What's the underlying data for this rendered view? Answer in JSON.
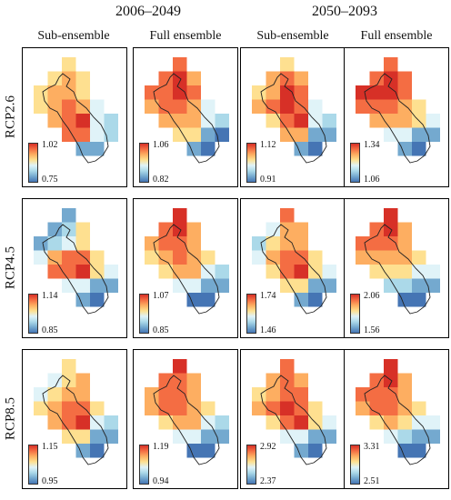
{
  "periods": [
    {
      "label": "2006–2049"
    },
    {
      "label": "2050–2093"
    }
  ],
  "columns": [
    {
      "label": "Sub-ensemble"
    },
    {
      "label": "Full ensemble"
    },
    {
      "label": "Sub-ensemble"
    },
    {
      "label": "Full ensemble"
    }
  ],
  "rows": [
    {
      "label": "RCP2.6"
    },
    {
      "label": "RCP4.5"
    },
    {
      "label": "RCP8.5"
    }
  ],
  "colorbar": {
    "colors": [
      "#4575b4",
      "#74a9cf",
      "#abd9e9",
      "#e0f3f8",
      "#fee090",
      "#fdae61",
      "#f46d43",
      "#d73027"
    ]
  },
  "panels": [
    {
      "max": "1.02",
      "min": "0.75"
    },
    {
      "max": "1.06",
      "min": "0.82"
    },
    {
      "max": "1.12",
      "min": "0.91"
    },
    {
      "max": "1.34",
      "min": "1.06"
    },
    {
      "max": "1.14",
      "min": "0.85"
    },
    {
      "max": "1.07",
      "min": "0.85"
    },
    {
      "max": "1.74",
      "min": "1.46"
    },
    {
      "max": "2.06",
      "min": "1.56"
    },
    {
      "max": "1.15",
      "min": "0.95"
    },
    {
      "max": "1.19",
      "min": "0.94"
    },
    {
      "max": "2.92",
      "min": "2.37"
    },
    {
      "max": "3.31",
      "min": "2.51"
    }
  ]
}
